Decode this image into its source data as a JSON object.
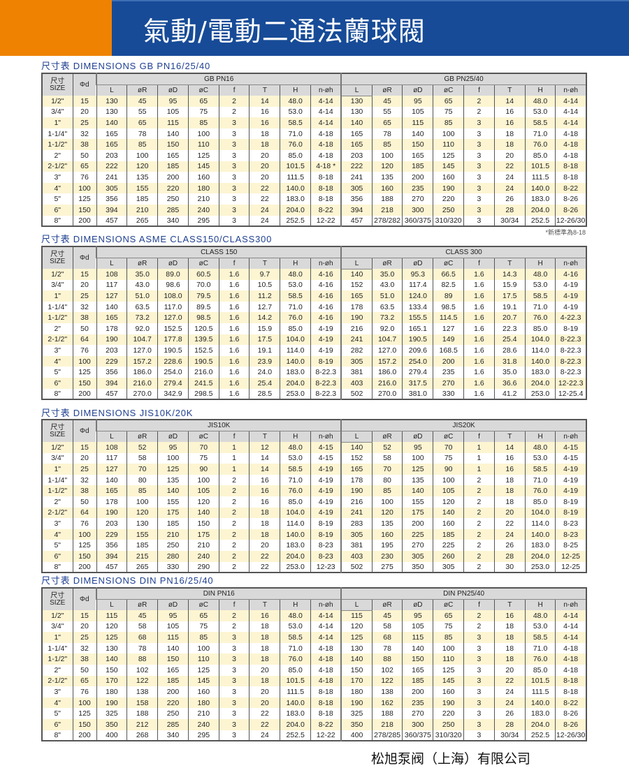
{
  "header": {
    "title": "氣動/電動二通法蘭球閥",
    "colors": {
      "orange": "#ef8200",
      "blue": "#174b97"
    }
  },
  "columns": {
    "size_cn": "尺寸",
    "size_en": "SIZE",
    "phi_d": "Φd",
    "sub": [
      "L",
      "øR",
      "øD",
      "øC",
      "f",
      "T",
      "H",
      "n-øh"
    ]
  },
  "tables": [
    {
      "heading": "尺寸表 DIMENSIONS GB PN16/25/40",
      "groups": [
        "GB PN16",
        "GB PN25/40"
      ],
      "note": "*新標準為8-18",
      "rows": [
        [
          "1/2\"",
          "15",
          "130",
          "45",
          "95",
          "65",
          "2",
          "14",
          "48.0",
          "4-14",
          "130",
          "45",
          "95",
          "65",
          "2",
          "14",
          "48.0",
          "4-14"
        ],
        [
          "3/4\"",
          "20",
          "130",
          "55",
          "105",
          "75",
          "2",
          "16",
          "53.0",
          "4-14",
          "130",
          "55",
          "105",
          "75",
          "2",
          "16",
          "53.0",
          "4-14"
        ],
        [
          "1\"",
          "25",
          "140",
          "65",
          "115",
          "85",
          "3",
          "16",
          "58.5",
          "4-14",
          "140",
          "65",
          "115",
          "85",
          "3",
          "16",
          "58.5",
          "4-14"
        ],
        [
          "1-1/4\"",
          "32",
          "165",
          "78",
          "140",
          "100",
          "3",
          "18",
          "71.0",
          "4-18",
          "165",
          "78",
          "140",
          "100",
          "3",
          "18",
          "71.0",
          "4-18"
        ],
        [
          "1-1/2\"",
          "38",
          "165",
          "85",
          "150",
          "110",
          "3",
          "18",
          "76.0",
          "4-18",
          "165",
          "85",
          "150",
          "110",
          "3",
          "18",
          "76.0",
          "4-18"
        ],
        [
          "2\"",
          "50",
          "203",
          "100",
          "165",
          "125",
          "3",
          "20",
          "85.0",
          "4-18",
          "203",
          "100",
          "165",
          "125",
          "3",
          "20",
          "85.0",
          "4-18"
        ],
        [
          "2-1/2\"",
          "65",
          "222",
          "120",
          "185",
          "145",
          "3",
          "20",
          "101.5",
          "4-18 *",
          "222",
          "120",
          "185",
          "145",
          "3",
          "22",
          "101.5",
          "8-18"
        ],
        [
          "3\"",
          "76",
          "241",
          "135",
          "200",
          "160",
          "3",
          "20",
          "111.5",
          "8-18",
          "241",
          "135",
          "200",
          "160",
          "3",
          "24",
          "111.5",
          "8-18"
        ],
        [
          "4\"",
          "100",
          "305",
          "155",
          "220",
          "180",
          "3",
          "22",
          "140.0",
          "8-18",
          "305",
          "160",
          "235",
          "190",
          "3",
          "24",
          "140.0",
          "8-22"
        ],
        [
          "5\"",
          "125",
          "356",
          "185",
          "250",
          "210",
          "3",
          "22",
          "183.0",
          "8-18",
          "356",
          "188",
          "270",
          "220",
          "3",
          "26",
          "183.0",
          "8-26"
        ],
        [
          "6\"",
          "150",
          "394",
          "210",
          "285",
          "240",
          "3",
          "24",
          "204.0",
          "8-22",
          "394",
          "218",
          "300",
          "250",
          "3",
          "28",
          "204.0",
          "8-26"
        ],
        [
          "8\"",
          "200",
          "457",
          "265",
          "340",
          "295",
          "3",
          "24",
          "252.5",
          "12-22",
          "457",
          "278/282",
          "360/375",
          "310/320",
          "3",
          "30/34",
          "252.5",
          "12-26/30"
        ]
      ]
    },
    {
      "heading": "尺寸表 DIMENSIONS ASME CLASS150/CLASS300",
      "groups": [
        "CLASS 150",
        "CLASS 300"
      ],
      "rows": [
        [
          "1/2\"",
          "15",
          "108",
          "35.0",
          "89.0",
          "60.5",
          "1.6",
          "9.7",
          "48.0",
          "4-16",
          "140",
          "35.0",
          "95.3",
          "66.5",
          "1.6",
          "14.3",
          "48.0",
          "4-16"
        ],
        [
          "3/4\"",
          "20",
          "117",
          "43.0",
          "98.6",
          "70.0",
          "1.6",
          "10.5",
          "53.0",
          "4-16",
          "152",
          "43.0",
          "117.4",
          "82.5",
          "1.6",
          "15.9",
          "53.0",
          "4-19"
        ],
        [
          "1\"",
          "25",
          "127",
          "51.0",
          "108.0",
          "79.5",
          "1.6",
          "11.2",
          "58.5",
          "4-16",
          "165",
          "51.0",
          "124.0",
          "89",
          "1.6",
          "17.5",
          "58.5",
          "4-19"
        ],
        [
          "1-1/4\"",
          "32",
          "140",
          "63.5",
          "117.0",
          "89.5",
          "1.6",
          "12.7",
          "71.0",
          "4-16",
          "178",
          "63.5",
          "133.4",
          "98.5",
          "1.6",
          "19.1",
          "71.0",
          "4-19"
        ],
        [
          "1-1/2\"",
          "38",
          "165",
          "73.2",
          "127.0",
          "98.5",
          "1.6",
          "14.2",
          "76.0",
          "4-16",
          "190",
          "73.2",
          "155.5",
          "114.5",
          "1.6",
          "20.7",
          "76.0",
          "4-22.3"
        ],
        [
          "2\"",
          "50",
          "178",
          "92.0",
          "152.5",
          "120.5",
          "1.6",
          "15.9",
          "85.0",
          "4-19",
          "216",
          "92.0",
          "165.1",
          "127",
          "1.6",
          "22.3",
          "85.0",
          "8-19"
        ],
        [
          "2-1/2\"",
          "64",
          "190",
          "104.7",
          "177.8",
          "139.5",
          "1.6",
          "17.5",
          "104.0",
          "4-19",
          "241",
          "104.7",
          "190.5",
          "149",
          "1.6",
          "25.4",
          "104.0",
          "8-22.3"
        ],
        [
          "3\"",
          "76",
          "203",
          "127.0",
          "190.5",
          "152.5",
          "1.6",
          "19.1",
          "114.0",
          "4-19",
          "282",
          "127.0",
          "209.6",
          "168.5",
          "1.6",
          "28.6",
          "114.0",
          "8-22.3"
        ],
        [
          "4\"",
          "100",
          "229",
          "157.2",
          "228.6",
          "190.5",
          "1.6",
          "23.9",
          "140.0",
          "8-19",
          "305",
          "157.2",
          "254.0",
          "200",
          "1.6",
          "31.8",
          "140.0",
          "8-22.3"
        ],
        [
          "5\"",
          "125",
          "356",
          "186.0",
          "254.0",
          "216.0",
          "1.6",
          "24.0",
          "183.0",
          "8-22.3",
          "381",
          "186.0",
          "279.4",
          "235",
          "1.6",
          "35.0",
          "183.0",
          "8-22.3"
        ],
        [
          "6\"",
          "150",
          "394",
          "216.0",
          "279.4",
          "241.5",
          "1.6",
          "25.4",
          "204.0",
          "8-22.3",
          "403",
          "216.0",
          "317.5",
          "270",
          "1.6",
          "36.6",
          "204.0",
          "12-22.3"
        ],
        [
          "8\"",
          "200",
          "457",
          "270.0",
          "342.9",
          "298.5",
          "1.6",
          "28.5",
          "253.0",
          "8-22.3",
          "502",
          "270.0",
          "381.0",
          "330",
          "1.6",
          "41.2",
          "253.0",
          "12-25.4"
        ]
      ]
    },
    {
      "heading": "尺寸表 DIMENSIONS JIS10K/20K",
      "groups": [
        "JIS10K",
        "JIS20K"
      ],
      "rows": [
        [
          "1/2\"",
          "15",
          "108",
          "52",
          "95",
          "70",
          "1",
          "12",
          "48.0",
          "4-15",
          "140",
          "52",
          "95",
          "70",
          "1",
          "14",
          "48.0",
          "4-15"
        ],
        [
          "3/4\"",
          "20",
          "117",
          "58",
          "100",
          "75",
          "1",
          "14",
          "53.0",
          "4-15",
          "152",
          "58",
          "100",
          "75",
          "1",
          "16",
          "53.0",
          "4-15"
        ],
        [
          "1\"",
          "25",
          "127",
          "70",
          "125",
          "90",
          "1",
          "14",
          "58.5",
          "4-19",
          "165",
          "70",
          "125",
          "90",
          "1",
          "16",
          "58.5",
          "4-19"
        ],
        [
          "1-1/4\"",
          "32",
          "140",
          "80",
          "135",
          "100",
          "2",
          "16",
          "71.0",
          "4-19",
          "178",
          "80",
          "135",
          "100",
          "2",
          "18",
          "71.0",
          "4-19"
        ],
        [
          "1-1/2\"",
          "38",
          "165",
          "85",
          "140",
          "105",
          "2",
          "16",
          "76.0",
          "4-19",
          "190",
          "85",
          "140",
          "105",
          "2",
          "18",
          "76.0",
          "4-19"
        ],
        [
          "2\"",
          "50",
          "178",
          "100",
          "155",
          "120",
          "2",
          "16",
          "85.0",
          "4-19",
          "216",
          "100",
          "155",
          "120",
          "2",
          "18",
          "85.0",
          "8-19"
        ],
        [
          "2-1/2\"",
          "64",
          "190",
          "120",
          "175",
          "140",
          "2",
          "18",
          "104.0",
          "4-19",
          "241",
          "120",
          "175",
          "140",
          "2",
          "20",
          "104.0",
          "8-19"
        ],
        [
          "3\"",
          "76",
          "203",
          "130",
          "185",
          "150",
          "2",
          "18",
          "114.0",
          "8-19",
          "283",
          "135",
          "200",
          "160",
          "2",
          "22",
          "114.0",
          "8-23"
        ],
        [
          "4\"",
          "100",
          "229",
          "155",
          "210",
          "175",
          "2",
          "18",
          "140.0",
          "8-19",
          "305",
          "160",
          "225",
          "185",
          "2",
          "24",
          "140.0",
          "8-23"
        ],
        [
          "5\"",
          "125",
          "356",
          "185",
          "250",
          "210",
          "2",
          "20",
          "183.0",
          "8-23",
          "381",
          "195",
          "270",
          "225",
          "2",
          "26",
          "183.0",
          "8-25"
        ],
        [
          "6\"",
          "150",
          "394",
          "215",
          "280",
          "240",
          "2",
          "22",
          "204.0",
          "8-23",
          "403",
          "230",
          "305",
          "260",
          "2",
          "28",
          "204.0",
          "12-25"
        ],
        [
          "8\"",
          "200",
          "457",
          "265",
          "330",
          "290",
          "2",
          "22",
          "253.0",
          "12-23",
          "502",
          "275",
          "350",
          "305",
          "2",
          "30",
          "253.0",
          "12-25"
        ]
      ]
    },
    {
      "heading": "尺寸表 DIMENSIONS DIN PN16/25/40",
      "groups": [
        "DIN PN16",
        "DIN PN25/40"
      ],
      "rows": [
        [
          "1/2\"",
          "15",
          "115",
          "45",
          "95",
          "65",
          "2",
          "16",
          "48.0",
          "4-14",
          "115",
          "45",
          "95",
          "65",
          "2",
          "16",
          "48.0",
          "4-14"
        ],
        [
          "3/4\"",
          "20",
          "120",
          "58",
          "105",
          "75",
          "2",
          "18",
          "53.0",
          "4-14",
          "120",
          "58",
          "105",
          "75",
          "2",
          "18",
          "53.0",
          "4-14"
        ],
        [
          "1\"",
          "25",
          "125",
          "68",
          "115",
          "85",
          "3",
          "18",
          "58.5",
          "4-14",
          "125",
          "68",
          "115",
          "85",
          "3",
          "18",
          "58.5",
          "4-14"
        ],
        [
          "1-1/4\"",
          "32",
          "130",
          "78",
          "140",
          "100",
          "3",
          "18",
          "71.0",
          "4-18",
          "130",
          "78",
          "140",
          "100",
          "3",
          "18",
          "71.0",
          "4-18"
        ],
        [
          "1-1/2\"",
          "38",
          "140",
          "88",
          "150",
          "110",
          "3",
          "18",
          "76.0",
          "4-18",
          "140",
          "88",
          "150",
          "110",
          "3",
          "18",
          "76.0",
          "4-18"
        ],
        [
          "2\"",
          "50",
          "150",
          "102",
          "165",
          "125",
          "3",
          "20",
          "85.0",
          "4-18",
          "150",
          "102",
          "165",
          "125",
          "3",
          "20",
          "85.0",
          "4-18"
        ],
        [
          "2-1/2\"",
          "65",
          "170",
          "122",
          "185",
          "145",
          "3",
          "18",
          "101.5",
          "4-18",
          "170",
          "122",
          "185",
          "145",
          "3",
          "22",
          "101.5",
          "8-18"
        ],
        [
          "3\"",
          "76",
          "180",
          "138",
          "200",
          "160",
          "3",
          "20",
          "111.5",
          "8-18",
          "180",
          "138",
          "200",
          "160",
          "3",
          "24",
          "111.5",
          "8-18"
        ],
        [
          "4\"",
          "100",
          "190",
          "158",
          "220",
          "180",
          "3",
          "20",
          "140.0",
          "8-18",
          "190",
          "162",
          "235",
          "190",
          "3",
          "24",
          "140.0",
          "8-22"
        ],
        [
          "5\"",
          "125",
          "325",
          "188",
          "250",
          "210",
          "3",
          "22",
          "183.0",
          "8-18",
          "325",
          "188",
          "270",
          "220",
          "3",
          "26",
          "183.0",
          "8-26"
        ],
        [
          "6\"",
          "150",
          "350",
          "212",
          "285",
          "240",
          "3",
          "22",
          "204.0",
          "8-22",
          "350",
          "218",
          "300",
          "250",
          "3",
          "28",
          "204.0",
          "8-26"
        ],
        [
          "8\"",
          "200",
          "400",
          "268",
          "340",
          "295",
          "3",
          "24",
          "252.5",
          "12-22",
          "400",
          "278/285",
          "360/375",
          "310/320",
          "3",
          "30/34",
          "252.5",
          "12-26/30"
        ]
      ]
    }
  ],
  "footer": {
    "company": "松旭泵阀（上海）有限公司"
  }
}
